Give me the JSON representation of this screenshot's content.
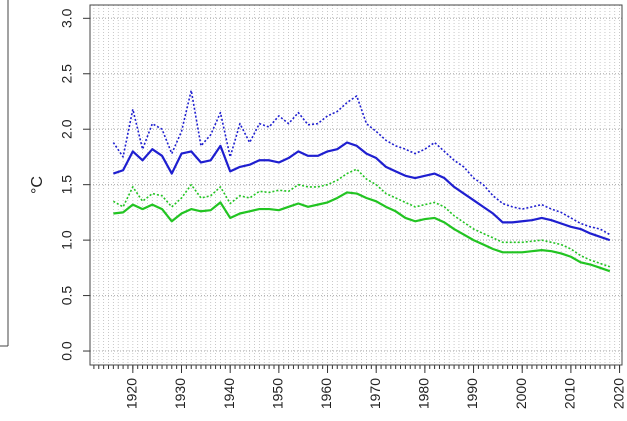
{
  "chart_data": {
    "type": "line",
    "y_label": "°C",
    "x": [
      1916,
      1918,
      1920,
      1922,
      1924,
      1926,
      1928,
      1930,
      1932,
      1934,
      1936,
      1938,
      1940,
      1942,
      1944,
      1946,
      1948,
      1950,
      1952,
      1954,
      1956,
      1958,
      1960,
      1962,
      1964,
      1966,
      1968,
      1970,
      1972,
      1974,
      1976,
      1978,
      1980,
      1982,
      1984,
      1986,
      1988,
      1990,
      1992,
      1994,
      1996,
      1998,
      2000,
      2002,
      2004,
      2006,
      2008,
      2010,
      2012,
      2014,
      2016,
      2018
    ],
    "series": [
      {
        "color": "#1f1fd0",
        "dash": "solid",
        "values": [
          1.6,
          1.63,
          1.8,
          1.72,
          1.82,
          1.76,
          1.6,
          1.78,
          1.8,
          1.7,
          1.72,
          1.85,
          1.62,
          1.66,
          1.68,
          1.72,
          1.72,
          1.7,
          1.74,
          1.8,
          1.76,
          1.76,
          1.8,
          1.82,
          1.88,
          1.85,
          1.78,
          1.74,
          1.66,
          1.62,
          1.58,
          1.56,
          1.58,
          1.6,
          1.56,
          1.48,
          1.42,
          1.36,
          1.3,
          1.24,
          1.16,
          1.16,
          1.17,
          1.18,
          1.2,
          1.18,
          1.15,
          1.12,
          1.1,
          1.06,
          1.03,
          1.0
        ]
      },
      {
        "color": "#1f1fd0",
        "dash": "dotted",
        "values": [
          1.88,
          1.75,
          2.18,
          1.82,
          2.05,
          2.0,
          1.78,
          1.98,
          2.35,
          1.85,
          1.95,
          2.15,
          1.75,
          2.05,
          1.88,
          2.05,
          2.02,
          2.12,
          2.05,
          2.15,
          2.04,
          2.05,
          2.12,
          2.16,
          2.24,
          2.3,
          2.05,
          1.98,
          1.9,
          1.85,
          1.82,
          1.78,
          1.82,
          1.88,
          1.8,
          1.72,
          1.66,
          1.56,
          1.5,
          1.4,
          1.33,
          1.3,
          1.28,
          1.3,
          1.32,
          1.28,
          1.25,
          1.2,
          1.15,
          1.12,
          1.1,
          1.05
        ]
      },
      {
        "color": "#22c422",
        "dash": "solid",
        "values": [
          1.24,
          1.25,
          1.32,
          1.28,
          1.32,
          1.28,
          1.17,
          1.24,
          1.28,
          1.26,
          1.27,
          1.34,
          1.2,
          1.24,
          1.26,
          1.28,
          1.28,
          1.27,
          1.3,
          1.33,
          1.3,
          1.32,
          1.34,
          1.38,
          1.43,
          1.42,
          1.38,
          1.35,
          1.3,
          1.26,
          1.2,
          1.17,
          1.19,
          1.2,
          1.16,
          1.1,
          1.05,
          1.0,
          0.96,
          0.92,
          0.89,
          0.89,
          0.89,
          0.9,
          0.91,
          0.9,
          0.88,
          0.85,
          0.8,
          0.78,
          0.75,
          0.72
        ]
      },
      {
        "color": "#22c422",
        "dash": "dotted",
        "values": [
          1.35,
          1.3,
          1.48,
          1.35,
          1.42,
          1.4,
          1.3,
          1.38,
          1.5,
          1.38,
          1.4,
          1.48,
          1.33,
          1.4,
          1.38,
          1.44,
          1.43,
          1.45,
          1.44,
          1.5,
          1.48,
          1.48,
          1.5,
          1.54,
          1.6,
          1.64,
          1.55,
          1.5,
          1.42,
          1.38,
          1.34,
          1.3,
          1.32,
          1.34,
          1.3,
          1.22,
          1.16,
          1.1,
          1.06,
          1.02,
          0.98,
          0.98,
          0.98,
          0.99,
          1.0,
          0.98,
          0.96,
          0.92,
          0.86,
          0.82,
          0.79,
          0.76
        ]
      }
    ],
    "xlim": [
      1911.2,
      2020.5
    ],
    "xticks": [
      1920,
      1930,
      1940,
      1950,
      1960,
      1970,
      1980,
      1990,
      2000,
      2010,
      2020
    ],
    "xminor_step": 1,
    "ylim": [
      -0.126,
      3.12
    ],
    "yticks": [
      {
        "value": 0,
        "label": "0.0"
      },
      0.5,
      {
        "value": 1,
        "label": "1.0"
      },
      1.5,
      {
        "value": 2,
        "label": "2.0"
      },
      2.5,
      {
        "value": 3,
        "label": "3.0"
      }
    ],
    "grid": true
  }
}
